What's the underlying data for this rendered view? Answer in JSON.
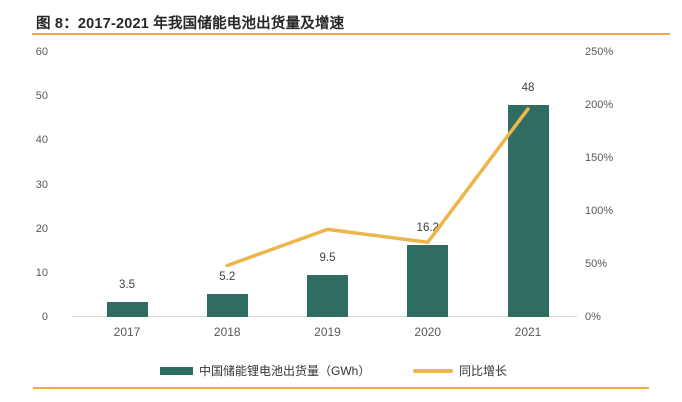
{
  "figure": {
    "title": "图 8：2017-2021 年我国储能电池出货量及增速",
    "rule_color": "#EFA93C"
  },
  "chart_data": {
    "type": "bar",
    "combo": "bar + line, dual axis",
    "title": "图 8：2017-2021 年我国储能电池出货量及增速",
    "categories": [
      "2017",
      "2018",
      "2019",
      "2020",
      "2021"
    ],
    "series": [
      {
        "name": "中国储能锂电池出货量（GWh）",
        "type": "bar",
        "axis": "left",
        "values": [
          3.5,
          5.2,
          9.5,
          16.2,
          48
        ],
        "labels": [
          "3.5",
          "5.2",
          "9.5",
          "16.2",
          "48"
        ],
        "color": "#2F6D63"
      },
      {
        "name": "同比增长",
        "type": "line",
        "axis": "right",
        "values_percent": [
          null,
          48.6,
          82.7,
          70.5,
          196.3
        ],
        "color": "#EDB54A"
      }
    ],
    "left_axis": {
      "min": 0,
      "max": 60,
      "ticks": [
        "0",
        "10",
        "20",
        "30",
        "40",
        "50",
        "60"
      ]
    },
    "right_axis": {
      "min": 0,
      "max": 250,
      "ticks": [
        "0%",
        "50%",
        "100%",
        "150%",
        "200%",
        "250%"
      ],
      "unit": "%"
    },
    "grid": false,
    "legend_position": "bottom"
  }
}
